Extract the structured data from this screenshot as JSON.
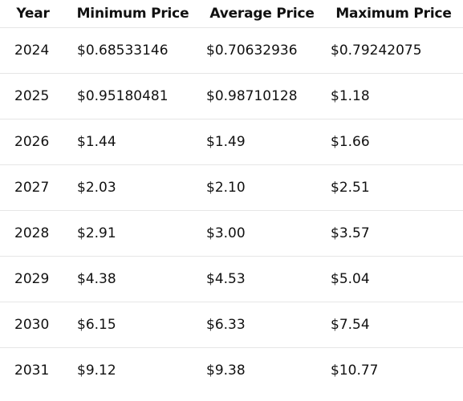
{
  "table": {
    "headers": {
      "year": "Year",
      "min": "Minimum Price",
      "avg": "Average Price",
      "max": "Maximum Price"
    },
    "rows": [
      {
        "year": "2024",
        "min": "$0.68533146",
        "avg": "$0.70632936",
        "max": "$0.79242075"
      },
      {
        "year": "2025",
        "min": "$0.95180481",
        "avg": "$0.98710128",
        "max": "$1.18"
      },
      {
        "year": "2026",
        "min": "$1.44",
        "avg": "$1.49",
        "max": "$1.66"
      },
      {
        "year": "2027",
        "min": "$2.03",
        "avg": "$2.10",
        "max": "$2.51"
      },
      {
        "year": "2028",
        "min": "$2.91",
        "avg": "$3.00",
        "max": "$3.57"
      },
      {
        "year": "2029",
        "min": "$4.38",
        "avg": "$4.53",
        "max": "$5.04"
      },
      {
        "year": "2030",
        "min": "$6.15",
        "avg": "$6.33",
        "max": "$7.54"
      },
      {
        "year": "2031",
        "min": "$9.12",
        "avg": "$9.38",
        "max": "$10.77"
      }
    ]
  }
}
